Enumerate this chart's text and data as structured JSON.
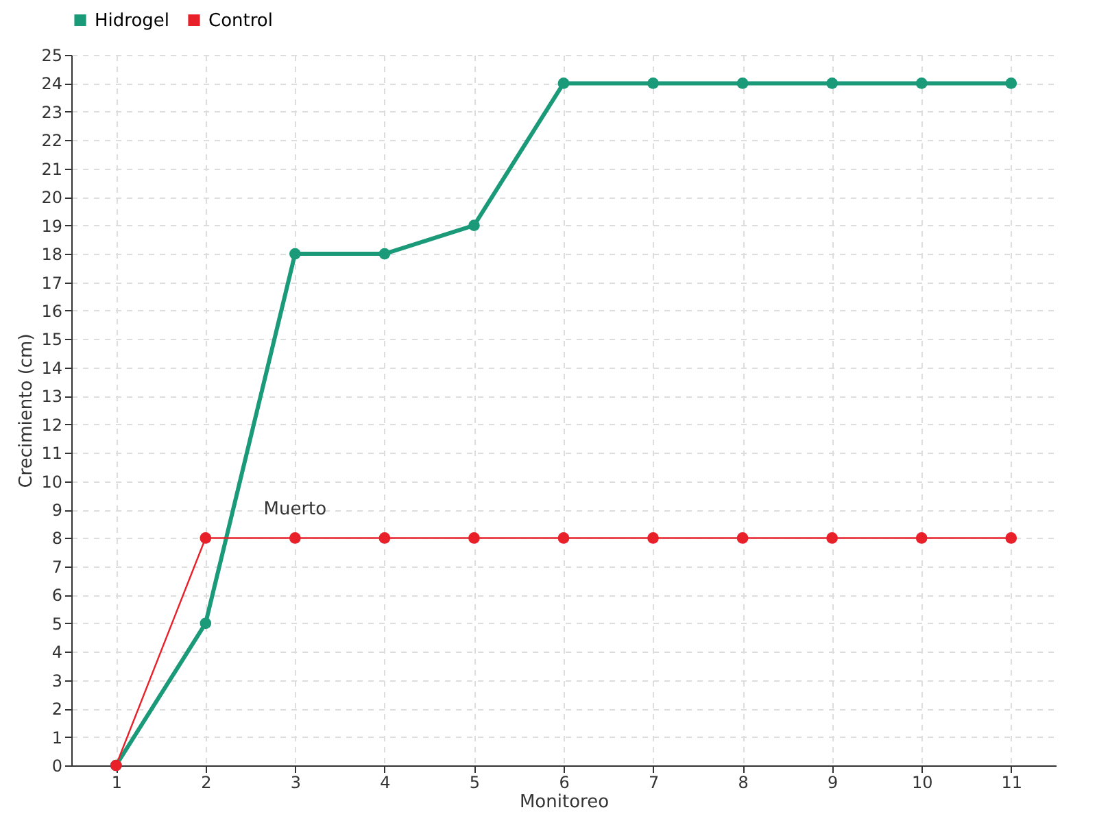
{
  "chart_data": {
    "type": "line",
    "xlabel": "Monitoreo",
    "ylabel": "Crecimiento (cm)",
    "categories": [
      "1",
      "2",
      "3",
      "4",
      "5",
      "6",
      "7",
      "8",
      "9",
      "10",
      "11"
    ],
    "series": [
      {
        "name": "Hidrogel",
        "color": "#1a9a78",
        "values": [
          0,
          5,
          18,
          18,
          19,
          24,
          24,
          24,
          24,
          24,
          24
        ]
      },
      {
        "name": "Control",
        "color": "#e8202a",
        "values": [
          0,
          8,
          8,
          8,
          8,
          8,
          8,
          8,
          8,
          8,
          8
        ]
      }
    ],
    "ylim": [
      0,
      25
    ],
    "yticks": [
      0,
      1,
      2,
      3,
      4,
      5,
      6,
      7,
      8,
      9,
      10,
      11,
      12,
      13,
      14,
      15,
      16,
      17,
      18,
      19,
      20,
      21,
      22,
      23,
      24,
      25
    ],
    "grid": true,
    "legend": "top left",
    "marker": "circle",
    "line_style": "solid",
    "annotations": [
      {
        "text": "Muerto",
        "x": "3",
        "y": 8
      }
    ]
  }
}
